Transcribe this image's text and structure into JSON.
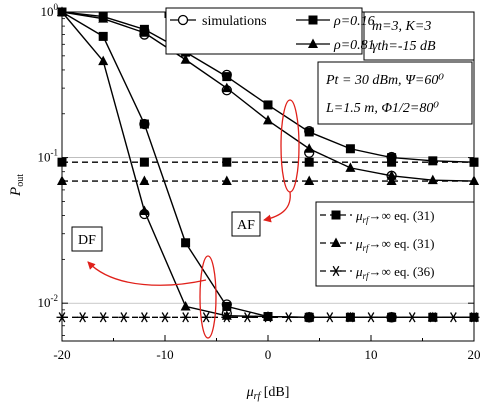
{
  "chart_data": {
    "type": "line",
    "xscale": "linear",
    "yscale": "log",
    "xlim": [
      -20,
      20
    ],
    "ylim": [
      0.0055,
      1
    ],
    "xticks": [
      -20,
      -10,
      0,
      10,
      20
    ],
    "xtick_labels": [
      "-20",
      "-10",
      "0",
      "10",
      "20"
    ],
    "yticks": [
      1,
      0.1,
      0.01
    ],
    "ytick_labels": [
      {
        "base": "10",
        "exp": "0"
      },
      {
        "base": "10",
        "exp": "-1"
      },
      {
        "base": "10",
        "exp": "-2"
      }
    ],
    "xlabel": {
      "main": "μ",
      "sub": "rf",
      "rest": " [dB]"
    },
    "ylabel": {
      "main": "P",
      "sub": "out"
    },
    "series": [
      {
        "name": "ρ=0.16",
        "marker": "square",
        "style": "solid",
        "x": [
          -20,
          -16,
          -12,
          -8,
          -4,
          0,
          4,
          8,
          12,
          16,
          20
        ],
        "y": [
          1.0,
          0.93,
          0.76,
          0.53,
          0.36,
          0.23,
          0.15,
          0.115,
          0.1,
          0.095,
          0.093
        ]
      },
      {
        "name": "simulations",
        "marker": "open-circle",
        "style": "none",
        "x": [
          -12,
          -4,
          4,
          12
        ],
        "y": [
          0.74,
          0.37,
          0.152,
          0.101
        ]
      },
      {
        "name": "ρ=0.81",
        "marker": "triangle",
        "style": "solid",
        "x": [
          -20,
          -16,
          -12,
          -8,
          -4,
          0,
          4,
          8,
          12,
          16,
          20
        ],
        "y": [
          1.0,
          0.9,
          0.72,
          0.47,
          0.3,
          0.18,
          0.115,
          0.085,
          0.075,
          0.07,
          0.069
        ]
      },
      {
        "name": "simulations",
        "marker": "open-circle",
        "style": "none",
        "x": [
          -12,
          -4,
          4,
          12
        ],
        "y": [
          0.7,
          0.29,
          0.108,
          0.075
        ]
      },
      {
        "name": "ρ=0.16",
        "marker": "square",
        "style": "solid",
        "x": [
          -20,
          -16,
          -12,
          -8,
          -4,
          0,
          4,
          8,
          12,
          16,
          20
        ],
        "y": [
          1.0,
          0.68,
          0.17,
          0.026,
          0.0095,
          0.0081,
          0.008,
          0.008,
          0.008,
          0.008,
          0.008
        ]
      },
      {
        "name": "simulations",
        "marker": "open-circle",
        "style": "none",
        "x": [
          -12,
          -4,
          4,
          12
        ],
        "y": [
          0.17,
          0.0098,
          0.008,
          0.008
        ]
      },
      {
        "name": "ρ=0.81",
        "marker": "triangle",
        "style": "solid",
        "x": [
          -20,
          -16,
          -12,
          -8,
          -4,
          0,
          4,
          8,
          12,
          16,
          20
        ],
        "y": [
          1.0,
          0.46,
          0.043,
          0.0095,
          0.0082,
          0.0081,
          0.008,
          0.008,
          0.008,
          0.008,
          0.008
        ]
      },
      {
        "name": "simulations",
        "marker": "open-circle",
        "style": "none",
        "x": [
          -12,
          -4,
          4,
          12
        ],
        "y": [
          0.041,
          0.0085,
          0.008,
          0.008
        ]
      },
      {
        "name": "μrf→∞ eq. (31)",
        "marker": "square",
        "style": "dashed",
        "x": [
          -20,
          -12,
          -4,
          4,
          12,
          20
        ],
        "y": [
          0.093,
          0.093,
          0.093,
          0.093,
          0.093,
          0.093
        ]
      },
      {
        "name": "μrf→∞ eq. (31)",
        "marker": "triangle",
        "style": "dashed",
        "x": [
          -20,
          -12,
          -4,
          4,
          12,
          20
        ],
        "y": [
          0.069,
          0.069,
          0.069,
          0.069,
          0.069,
          0.069
        ]
      },
      {
        "name": "μrf→∞ eq. (36)",
        "marker": "asterisk",
        "style": "dashed",
        "x": [
          -20,
          -18,
          -16,
          -14,
          -12,
          -10,
          -8,
          -6,
          -4,
          -2,
          0,
          2,
          4,
          6,
          8,
          10,
          12,
          14,
          16,
          18,
          20
        ],
        "y": [
          0.008,
          0.008,
          0.008,
          0.008,
          0.008,
          0.008,
          0.008,
          0.008,
          0.008,
          0.008,
          0.008,
          0.008,
          0.008,
          0.008,
          0.008,
          0.008,
          0.008,
          0.008,
          0.008,
          0.008,
          0.008
        ]
      }
    ],
    "legends": {
      "top": [
        {
          "label": "simulations",
          "marker": "open-circle"
        },
        {
          "label": "ρ=0.16",
          "marker": "square"
        },
        {
          "label": "ρ=0.81",
          "marker": "triangle"
        }
      ],
      "bottom": [
        {
          "label": "μrf→∞ eq. (31)",
          "marker": "square"
        },
        {
          "label": "μrf→∞ eq. (31)",
          "marker": "triangle"
        },
        {
          "label": "μrf→∞ eq. (36)",
          "marker": "asterisk"
        }
      ]
    },
    "annotations": {
      "params1": {
        "line1": "m=3, K=3",
        "line2": "γth=-15 dB"
      },
      "params2": {
        "line1": "Pt = 30 dBm, Ψ=60⁰",
        "line2": "L=1.5 m, Φ1/2=80⁰"
      },
      "af_label": "AF",
      "df_label": "DF"
    },
    "colors": {
      "curves": "#000000",
      "annotation": "#e0201a",
      "grid": "#aaaaaa"
    }
  }
}
